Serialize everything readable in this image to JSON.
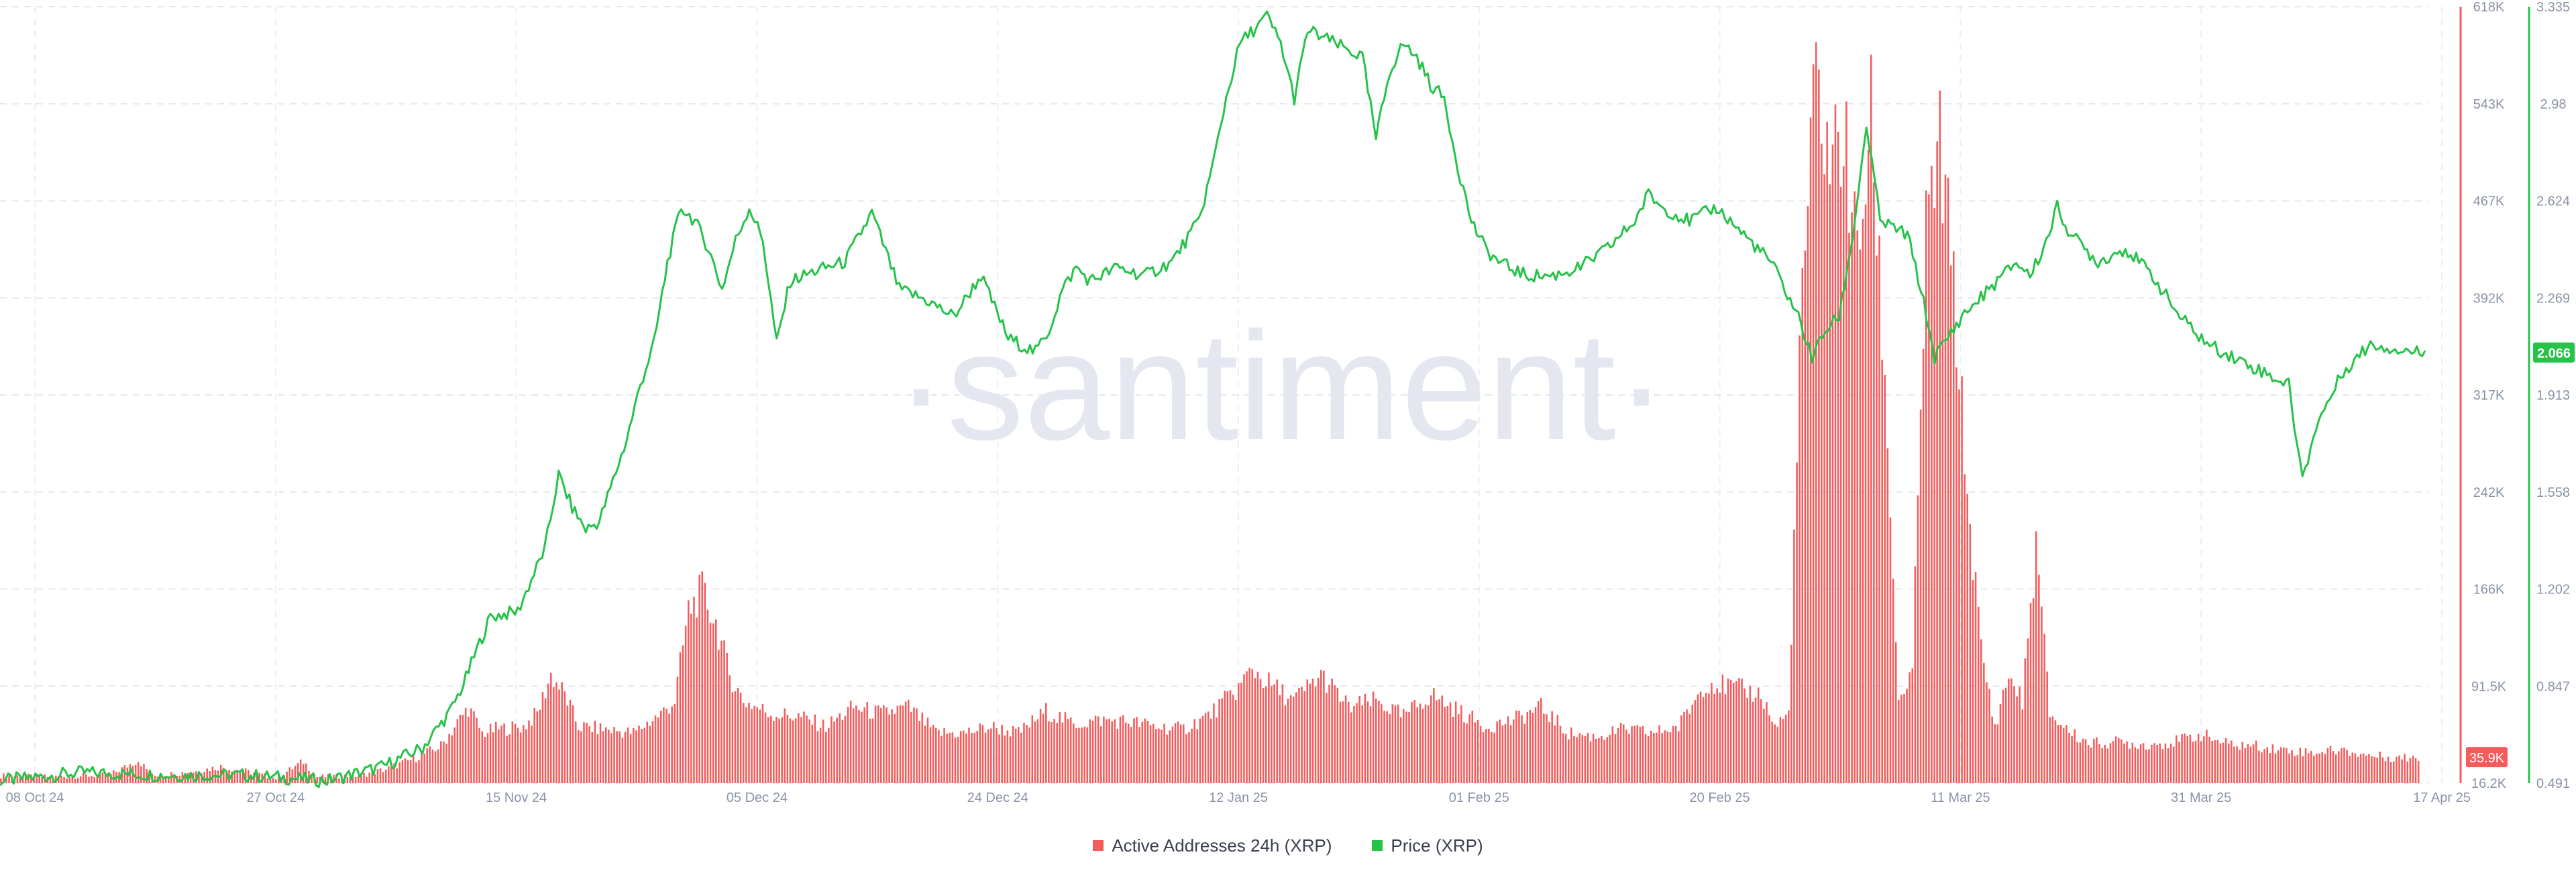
{
  "watermark": "·santiment·",
  "legend": [
    {
      "label": "Active Addresses 24h (XRP)",
      "color": "#f45b5b"
    },
    {
      "label": "Price (XRP)",
      "color": "#26c24a"
    }
  ],
  "chart_data": {
    "type": "bar+line",
    "title": "",
    "x_ticks": [
      "08 Oct 24",
      "27 Oct 24",
      "15 Nov 24",
      "05 Dec 24",
      "24 Dec 24",
      "12 Jan 25",
      "01 Feb 25",
      "20 Feb 25",
      "11 Mar 25",
      "31 Mar 25",
      "17 Apr 25"
    ],
    "y_left": {
      "label": "",
      "ticks": [
        "618K",
        "543K",
        "467K",
        "392K",
        "317K",
        "242K",
        "166K",
        "91.5K",
        "16.2K"
      ],
      "range": [
        16200,
        618000
      ],
      "color": "#f45b5b",
      "current_label": "35.9K"
    },
    "y_right": {
      "label": "",
      "ticks": [
        "3.335",
        "2.98",
        "2.624",
        "2.269",
        "1.913",
        "1.558",
        "1.202",
        "0.847",
        "0.491"
      ],
      "range": [
        0.491,
        3.335
      ],
      "color": "#26c24a",
      "current_label": "2.066"
    },
    "grid": true,
    "series": [
      {
        "name": "Active Addresses 24h (XRP)",
        "type": "bar",
        "axis": "left",
        "color": "#f45b5b",
        "anchors": [
          [
            0,
            22000
          ],
          [
            20,
            21000
          ],
          [
            40,
            23000
          ],
          [
            50,
            34000
          ],
          [
            55,
            22000
          ],
          [
            70,
            25000
          ],
          [
            80,
            29000
          ],
          [
            90,
            25000
          ],
          [
            100,
            20000
          ],
          [
            110,
            33000
          ],
          [
            115,
            21000
          ],
          [
            130,
            22000
          ],
          [
            140,
            27000
          ],
          [
            150,
            35000
          ],
          [
            160,
            45000
          ],
          [
            165,
            60000
          ],
          [
            170,
            75000
          ],
          [
            175,
            55000
          ],
          [
            180,
            58000
          ],
          [
            190,
            60000
          ],
          [
            195,
            70000
          ],
          [
            200,
            100000
          ],
          [
            205,
            85000
          ],
          [
            210,
            60000
          ],
          [
            220,
            58000
          ],
          [
            230,
            55000
          ],
          [
            240,
            70000
          ],
          [
            245,
            80000
          ],
          [
            250,
            150000
          ],
          [
            255,
            165000
          ],
          [
            260,
            140000
          ],
          [
            265,
            100000
          ],
          [
            270,
            80000
          ],
          [
            280,
            70000
          ],
          [
            290,
            68000
          ],
          [
            300,
            60000
          ],
          [
            310,
            75000
          ],
          [
            320,
            70000
          ],
          [
            330,
            75000
          ],
          [
            340,
            55000
          ],
          [
            350,
            55000
          ],
          [
            360,
            60000
          ],
          [
            370,
            55000
          ],
          [
            380,
            72000
          ],
          [
            390,
            62000
          ],
          [
            400,
            65000
          ],
          [
            410,
            64000
          ],
          [
            420,
            60000
          ],
          [
            430,
            58000
          ],
          [
            440,
            70000
          ],
          [
            450,
            90000
          ],
          [
            455,
            105000
          ],
          [
            460,
            95000
          ],
          [
            470,
            80000
          ],
          [
            480,
            100000
          ],
          [
            490,
            75000
          ],
          [
            500,
            80000
          ],
          [
            510,
            68000
          ],
          [
            520,
            85000
          ],
          [
            530,
            72000
          ],
          [
            540,
            60000
          ],
          [
            550,
            65000
          ],
          [
            560,
            75000
          ],
          [
            570,
            55000
          ],
          [
            580,
            52000
          ],
          [
            590,
            58000
          ],
          [
            600,
            55000
          ],
          [
            610,
            60000
          ],
          [
            620,
            95000
          ],
          [
            630,
            90000
          ],
          [
            640,
            85000
          ],
          [
            645,
            60000
          ],
          [
            650,
            70000
          ],
          [
            655,
            400000
          ],
          [
            660,
            560000
          ],
          [
            665,
            500000
          ],
          [
            670,
            520000
          ],
          [
            675,
            420000
          ],
          [
            680,
            530000
          ],
          [
            685,
            330000
          ],
          [
            690,
            80000
          ],
          [
            695,
            100000
          ],
          [
            700,
            440000
          ],
          [
            705,
            510000
          ],
          [
            710,
            400000
          ],
          [
            715,
            240000
          ],
          [
            720,
            120000
          ],
          [
            725,
            60000
          ],
          [
            730,
            100000
          ],
          [
            735,
            80000
          ],
          [
            740,
            200000
          ],
          [
            745,
            70000
          ],
          [
            750,
            60000
          ],
          [
            755,
            52000
          ],
          [
            760,
            47000
          ],
          [
            770,
            48000
          ],
          [
            780,
            46000
          ],
          [
            790,
            48000
          ],
          [
            800,
            54000
          ],
          [
            810,
            46000
          ],
          [
            820,
            45000
          ],
          [
            830,
            42000
          ],
          [
            840,
            40000
          ],
          [
            850,
            42000
          ],
          [
            860,
            38000
          ],
          [
            870,
            36000
          ]
        ],
        "current": 35900
      },
      {
        "name": "Price (XRP)",
        "type": "line",
        "axis": "right",
        "color": "#26c24a",
        "anchors": [
          [
            0,
            0.5
          ],
          [
            30,
            0.53
          ],
          [
            60,
            0.52
          ],
          [
            90,
            0.52
          ],
          [
            120,
            0.5
          ],
          [
            140,
            0.55
          ],
          [
            155,
            0.62
          ],
          [
            165,
            0.75
          ],
          [
            170,
            0.85
          ],
          [
            175,
            0.98
          ],
          [
            180,
            1.1
          ],
          [
            190,
            1.12
          ],
          [
            200,
            1.35
          ],
          [
            205,
            1.62
          ],
          [
            210,
            1.5
          ],
          [
            215,
            1.42
          ],
          [
            220,
            1.45
          ],
          [
            225,
            1.6
          ],
          [
            230,
            1.75
          ],
          [
            235,
            1.95
          ],
          [
            240,
            2.1
          ],
          [
            245,
            2.4
          ],
          [
            250,
            2.6
          ],
          [
            255,
            2.55
          ],
          [
            260,
            2.45
          ],
          [
            265,
            2.3
          ],
          [
            270,
            2.48
          ],
          [
            275,
            2.6
          ],
          [
            280,
            2.48
          ],
          [
            285,
            2.1
          ],
          [
            290,
            2.33
          ],
          [
            300,
            2.37
          ],
          [
            310,
            2.4
          ],
          [
            320,
            2.58
          ],
          [
            330,
            2.3
          ],
          [
            340,
            2.26
          ],
          [
            350,
            2.2
          ],
          [
            360,
            2.35
          ],
          [
            370,
            2.12
          ],
          [
            380,
            2.07
          ],
          [
            385,
            2.15
          ],
          [
            390,
            2.3
          ],
          [
            395,
            2.38
          ],
          [
            400,
            2.33
          ],
          [
            410,
            2.38
          ],
          [
            420,
            2.35
          ],
          [
            430,
            2.4
          ],
          [
            440,
            2.55
          ],
          [
            445,
            2.75
          ],
          [
            450,
            3.0
          ],
          [
            455,
            3.2
          ],
          [
            460,
            3.25
          ],
          [
            465,
            3.3
          ],
          [
            470,
            3.2
          ],
          [
            475,
            3.0
          ],
          [
            480,
            3.25
          ],
          [
            490,
            3.2
          ],
          [
            500,
            3.15
          ],
          [
            505,
            2.85
          ],
          [
            510,
            3.1
          ],
          [
            515,
            3.2
          ],
          [
            520,
            3.15
          ],
          [
            525,
            3.05
          ],
          [
            530,
            3.0
          ],
          [
            535,
            2.75
          ],
          [
            540,
            2.55
          ],
          [
            545,
            2.45
          ],
          [
            550,
            2.4
          ],
          [
            560,
            2.35
          ],
          [
            570,
            2.35
          ],
          [
            580,
            2.38
          ],
          [
            590,
            2.45
          ],
          [
            600,
            2.55
          ],
          [
            605,
            2.65
          ],
          [
            610,
            2.6
          ],
          [
            620,
            2.55
          ],
          [
            630,
            2.6
          ],
          [
            640,
            2.5
          ],
          [
            650,
            2.4
          ],
          [
            660,
            2.2
          ],
          [
            665,
            2.05
          ],
          [
            670,
            2.15
          ],
          [
            675,
            2.2
          ],
          [
            680,
            2.5
          ],
          [
            685,
            2.9
          ],
          [
            690,
            2.55
          ],
          [
            700,
            2.5
          ],
          [
            705,
            2.3
          ],
          [
            710,
            2.05
          ],
          [
            720,
            2.2
          ],
          [
            730,
            2.3
          ],
          [
            740,
            2.4
          ],
          [
            745,
            2.35
          ],
          [
            750,
            2.45
          ],
          [
            755,
            2.6
          ],
          [
            760,
            2.5
          ],
          [
            770,
            2.4
          ],
          [
            780,
            2.45
          ],
          [
            790,
            2.35
          ],
          [
            800,
            2.2
          ],
          [
            810,
            2.1
          ],
          [
            820,
            2.05
          ],
          [
            830,
            2.0
          ],
          [
            840,
            1.95
          ],
          [
            845,
            1.6
          ],
          [
            850,
            1.8
          ],
          [
            860,
            2.0
          ],
          [
            870,
            2.1
          ],
          [
            880,
            2.08
          ],
          [
            890,
            2.066
          ]
        ],
        "current": 2.066
      }
    ]
  }
}
